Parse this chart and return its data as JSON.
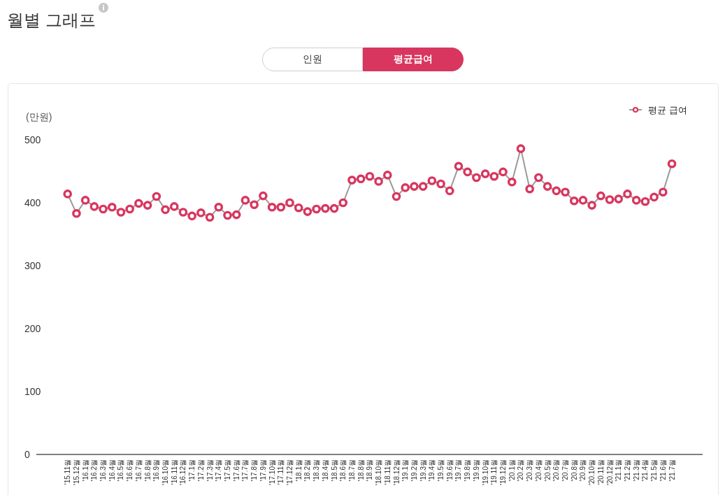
{
  "chart_data": {
    "type": "line",
    "title": "월별 그래프",
    "ylabel": "(만원)",
    "annotations": [
      "인원",
      "평균급여"
    ],
    "categories": [
      "'15.11월",
      "'15.12월",
      "'16.1월",
      "'16.2월",
      "'16.3월",
      "'16.4월",
      "'16.5월",
      "'16.6월",
      "'16.7월",
      "'16.8월",
      "'16.9월",
      "'16.10월",
      "'16.11월",
      "'16.12월",
      "'17.1월",
      "'17.2월",
      "'17.3월",
      "'17.4월",
      "'17.5월",
      "'17.6월",
      "'17.7월",
      "'17.8월",
      "'17.9월",
      "'17.10월",
      "'17.11월",
      "'17.12월",
      "'18.1월",
      "'18.2월",
      "'18.3월",
      "'18.4월",
      "'18.5월",
      "'18.6월",
      "'18.7월",
      "'18.8월",
      "'18.9월",
      "'18.10월",
      "'18.11월",
      "'18.12월",
      "'19.1월",
      "'19.2월",
      "'19.3월",
      "'19.4월",
      "'19.5월",
      "'19.6월",
      "'19.7월",
      "'19.8월",
      "'19.9월",
      "'19.10월",
      "'19.11월",
      "'19.12월",
      "'20.1월",
      "'20.2월",
      "'20.3월",
      "'20.4월",
      "'20.5월",
      "'20.6월",
      "'20.7월",
      "'20.8월",
      "'20.9월",
      "'20.10월",
      "'20.11월",
      "'20.12월",
      "'21.1월",
      "'21.2월",
      "'21.3월",
      "'21.4월",
      "'21.5월",
      "'21.6월",
      "'21.7월"
    ],
    "series": [
      {
        "name": "평균 급여",
        "color": "#d8365f",
        "values": [
          414,
          383,
          404,
          394,
          390,
          393,
          385,
          390,
          399,
          396,
          410,
          389,
          394,
          385,
          379,
          384,
          377,
          393,
          380,
          381,
          404,
          397,
          411,
          393,
          393,
          400,
          392,
          386,
          390,
          391,
          391,
          400,
          436,
          438,
          442,
          434,
          444,
          410,
          424,
          426,
          426,
          435,
          430,
          419,
          458,
          449,
          440,
          446,
          442,
          449,
          433,
          486,
          422,
          440,
          426,
          419,
          417,
          403,
          404,
          396,
          411,
          405,
          406,
          414,
          404,
          402,
          409,
          417,
          462
        ]
      }
    ],
    "ylim": [
      0,
      500
    ],
    "yticks": [
      0,
      100,
      200,
      300,
      400,
      500
    ],
    "legend": "top right",
    "marker": "circle",
    "line_style": "solid"
  }
}
